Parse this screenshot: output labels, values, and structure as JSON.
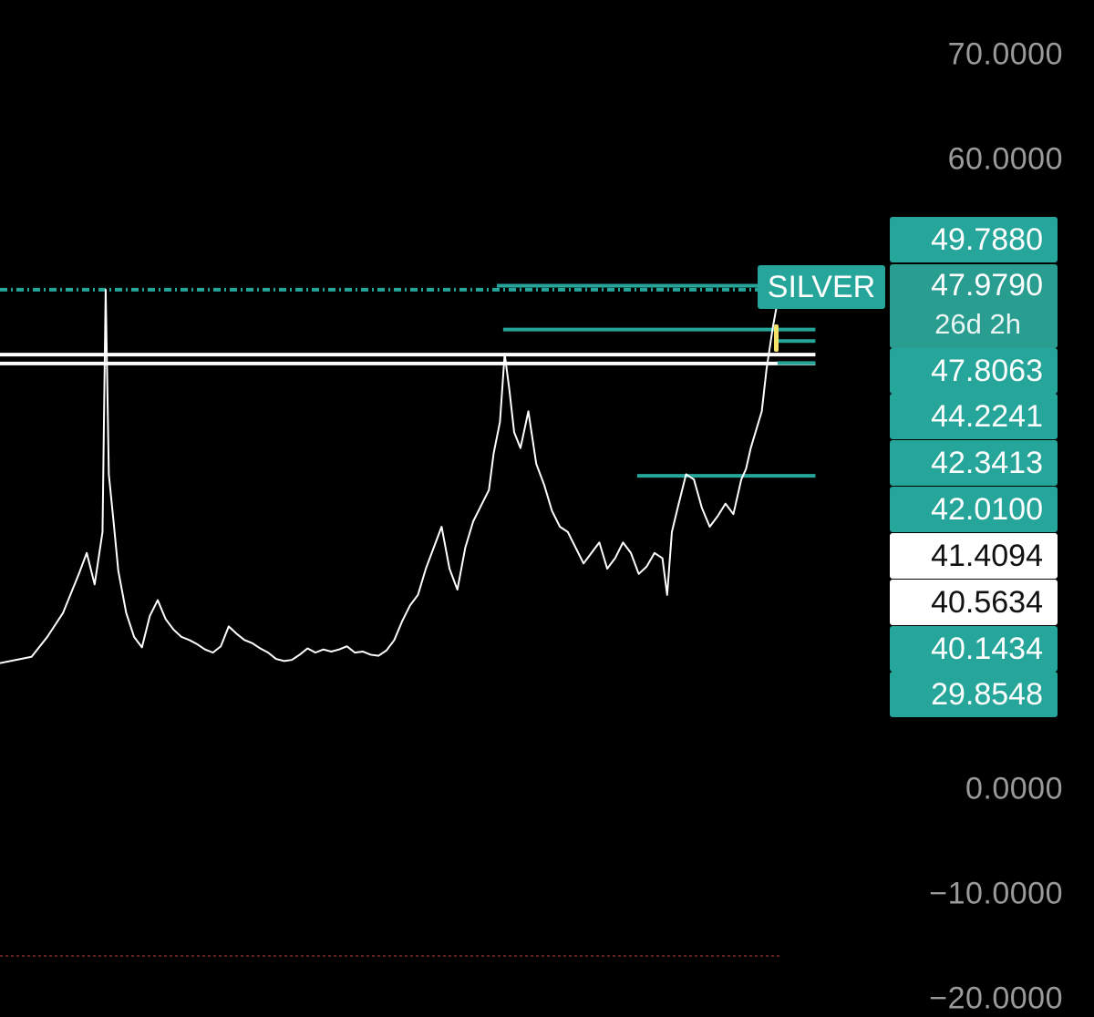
{
  "chart_data": {
    "type": "line",
    "symbol": "SILVER",
    "ylim": [
      -20,
      70
    ],
    "y_ticks": [
      "70.0000",
      "60.0000",
      "0.0000",
      "−10.0000",
      "−20.0000"
    ],
    "current_price": "47.9790",
    "countdown": "26d 2h",
    "price_labels": [
      {
        "value": "49.7880",
        "style": "teal"
      },
      {
        "value": "47.8063",
        "style": "teal"
      },
      {
        "value": "44.2241",
        "style": "teal"
      },
      {
        "value": "42.3413",
        "style": "teal"
      },
      {
        "value": "42.0100",
        "style": "teal"
      },
      {
        "value": "41.4094",
        "style": "white"
      },
      {
        "value": "40.5634",
        "style": "white"
      },
      {
        "value": "40.1434",
        "style": "teal"
      },
      {
        "value": "29.8548",
        "style": "teal"
      }
    ],
    "series": [
      {
        "values": [
          [
            0,
            12.0
          ],
          [
            2,
            12.6
          ],
          [
            3,
            14.5
          ],
          [
            4,
            16.8
          ],
          [
            5,
            20.5
          ],
          [
            5.5,
            22.5
          ],
          [
            6,
            19.5
          ],
          [
            6.5,
            24.5
          ],
          [
            6.7,
            47.6
          ],
          [
            6.9,
            30.0
          ],
          [
            7.2,
            25.5
          ],
          [
            7.5,
            20.8
          ],
          [
            8,
            16.8
          ],
          [
            8.5,
            14.5
          ],
          [
            9,
            13.5
          ],
          [
            9.5,
            16.5
          ],
          [
            10,
            18.0
          ],
          [
            10.5,
            16.2
          ],
          [
            11,
            15.2
          ],
          [
            11.5,
            14.5
          ],
          [
            12,
            14.2
          ],
          [
            12.5,
            13.8
          ],
          [
            13,
            13.3
          ],
          [
            13.5,
            13.0
          ],
          [
            14,
            13.6
          ],
          [
            14.5,
            15.5
          ],
          [
            15,
            14.8
          ],
          [
            15.5,
            14.2
          ],
          [
            16,
            13.9
          ],
          [
            16.5,
            13.4
          ],
          [
            17,
            13.0
          ],
          [
            17.5,
            12.4
          ],
          [
            18,
            12.2
          ],
          [
            18.5,
            12.3
          ],
          [
            19,
            12.8
          ],
          [
            19.5,
            13.4
          ],
          [
            20,
            13.0
          ],
          [
            20.5,
            13.3
          ],
          [
            21,
            13.1
          ],
          [
            21.5,
            13.3
          ],
          [
            22,
            13.6
          ],
          [
            22.5,
            13.0
          ],
          [
            23,
            13.1
          ],
          [
            23.5,
            12.8
          ],
          [
            24,
            12.7
          ],
          [
            24.5,
            13.2
          ],
          [
            25,
            14.2
          ],
          [
            25.5,
            16.0
          ],
          [
            26,
            17.5
          ],
          [
            26.5,
            18.5
          ],
          [
            27,
            21.0
          ],
          [
            27.5,
            23.0
          ],
          [
            28,
            25.0
          ],
          [
            28.5,
            21.0
          ],
          [
            29,
            19.0
          ],
          [
            29.5,
            23.0
          ],
          [
            30,
            25.5
          ],
          [
            30.5,
            27.0
          ],
          [
            31,
            28.5
          ],
          [
            31.3,
            32.0
          ],
          [
            31.7,
            35.0
          ],
          [
            32,
            41.5
          ],
          [
            32.3,
            38.0
          ],
          [
            32.6,
            34.0
          ],
          [
            33,
            32.5
          ],
          [
            33.5,
            36.0
          ],
          [
            34,
            31.0
          ],
          [
            34.5,
            29.0
          ],
          [
            35,
            26.5
          ],
          [
            35.5,
            25.0
          ],
          [
            36,
            24.5
          ],
          [
            36.5,
            23.0
          ],
          [
            37,
            21.5
          ],
          [
            37.5,
            22.5
          ],
          [
            38,
            23.5
          ],
          [
            38.5,
            21.0
          ],
          [
            39,
            22.0
          ],
          [
            39.5,
            23.5
          ],
          [
            40,
            22.5
          ],
          [
            40.5,
            20.5
          ],
          [
            41,
            21.2
          ],
          [
            41.5,
            22.5
          ],
          [
            42,
            22.0
          ],
          [
            42.3,
            18.5
          ],
          [
            42.6,
            24.5
          ],
          [
            43,
            27.0
          ],
          [
            43.5,
            30.0
          ],
          [
            44,
            29.5
          ],
          [
            44.5,
            26.8
          ],
          [
            45,
            25.0
          ],
          [
            45.5,
            26.0
          ],
          [
            46,
            27.2
          ],
          [
            46.5,
            26.2
          ],
          [
            47,
            29.5
          ],
          [
            47.3,
            30.5
          ],
          [
            47.6,
            32.5
          ],
          [
            48,
            34.5
          ],
          [
            48.3,
            36.0
          ],
          [
            48.6,
            40.0
          ],
          [
            49,
            44.0
          ],
          [
            49.3,
            46.5
          ],
          [
            49.5,
            47.0
          ]
        ]
      }
    ],
    "levels": [
      {
        "y": 47.6,
        "x_from": 0,
        "x_to": 49.5,
        "style": "dashdot-teal"
      },
      {
        "y": 47.979,
        "x_from": 31.5,
        "x_to": 49.3,
        "style": "teal"
      },
      {
        "y": 43.8,
        "x_from": 31.9,
        "x_to": 51.7,
        "style": "teal"
      },
      {
        "y": 42.7,
        "x_from": 49.3,
        "x_to": 51.7,
        "style": "teal"
      },
      {
        "y": 41.4094,
        "x_from": 0,
        "x_to": 51.7,
        "style": "white"
      },
      {
        "y": 40.5634,
        "x_from": 0,
        "x_to": 51.7,
        "style": "white"
      },
      {
        "y": 40.6,
        "x_from": 49.3,
        "x_to": 51.7,
        "style": "teal"
      },
      {
        "y": 29.8548,
        "x_from": 40.4,
        "x_to": 51.7,
        "style": "teal"
      }
    ],
    "colors": {
      "background": "#000000",
      "line": "#ffffff",
      "teal": "#26a69a",
      "marker": "#f4e26a",
      "bottom_line": "#7a2a2a"
    }
  }
}
